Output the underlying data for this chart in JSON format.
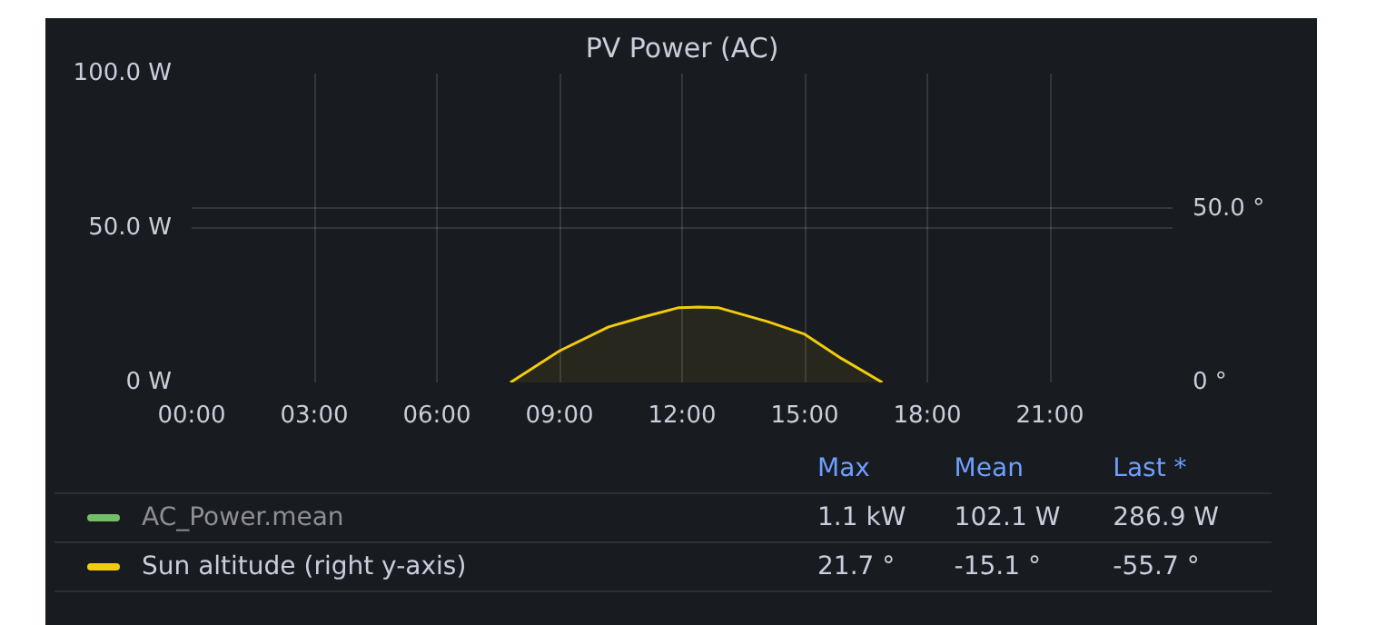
{
  "chart_data": {
    "type": "area",
    "title": "PV Power (AC)",
    "xlim": [
      0,
      24
    ],
    "xticks": [
      {
        "value": 0,
        "label": "00:00"
      },
      {
        "value": 3,
        "label": "03:00"
      },
      {
        "value": 6,
        "label": "06:00"
      },
      {
        "value": 9,
        "label": "09:00"
      },
      {
        "value": 12,
        "label": "12:00"
      },
      {
        "value": 15,
        "label": "15:00"
      },
      {
        "value": 18,
        "label": "18:00"
      },
      {
        "value": 21,
        "label": "21:00"
      }
    ],
    "ylim": [
      0,
      100
    ],
    "yticks": [
      {
        "value": 0,
        "label": "0 W"
      },
      {
        "value": 50,
        "label": "50.0 W"
      },
      {
        "value": 100,
        "label": "100.0 W"
      }
    ],
    "y2lim": [
      0,
      89
    ],
    "y2ticks": [
      {
        "value": 0,
        "label": "0 °"
      },
      {
        "value": 50,
        "label": "50.0 °"
      }
    ],
    "grid": true,
    "legend": "bottom",
    "series": [
      {
        "name": "AC_Power.mean",
        "color": "#73bf69"
      },
      {
        "name": "Sun altitude (right y-axis)",
        "color": "#f2cc0c",
        "axis": "y2",
        "x": [
          7.8,
          9.0,
          10.2,
          11.0,
          11.9,
          12.4,
          12.9,
          14.1,
          15.0,
          15.9,
          16.9
        ],
        "values": [
          0,
          9.1,
          16.0,
          18.7,
          21.5,
          21.7,
          21.5,
          17.5,
          13.9,
          6.9,
          0
        ]
      }
    ],
    "annotations": [
      "Max",
      "Mean",
      "Last *",
      "1.1 kW",
      "102.1 W",
      "286.9 W",
      "21.7 °",
      "-15.1 °",
      "-55.7 °"
    ]
  }
}
